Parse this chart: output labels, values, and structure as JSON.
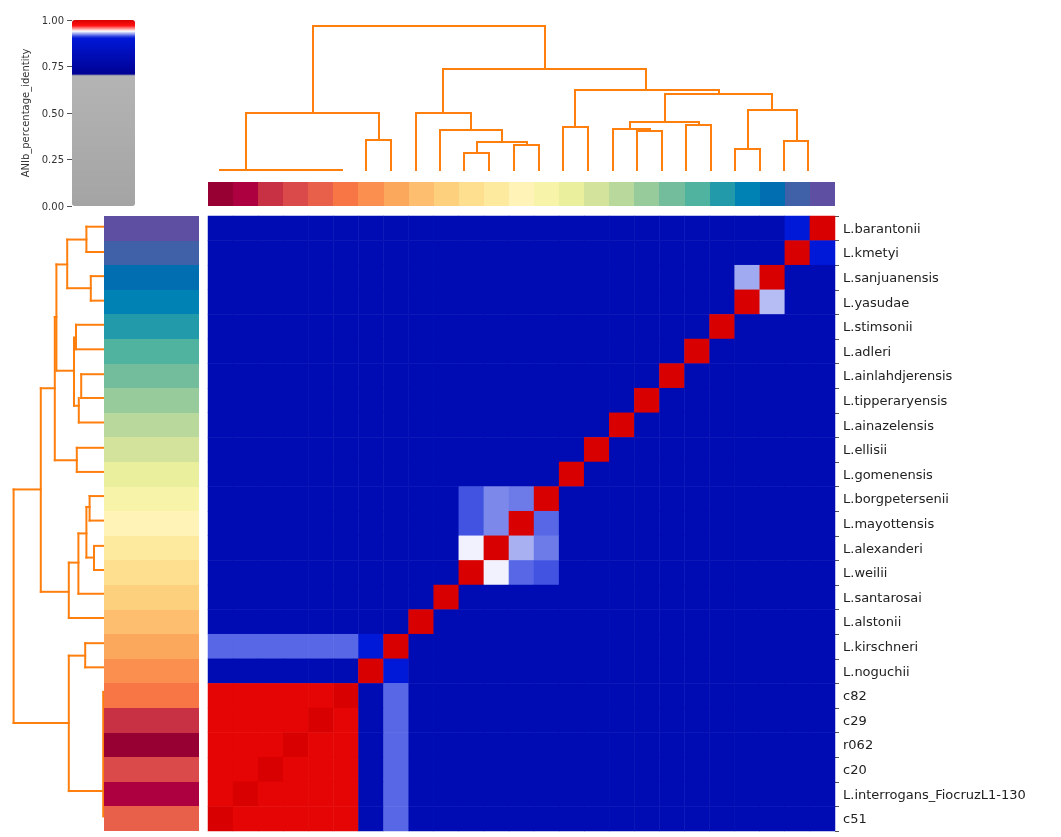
{
  "chart_data": {
    "type": "heatmap",
    "clabel": "ANIb_percentage_identity",
    "tick_labels": "y",
    "categories": [
      null,
      null,
      null,
      null,
      null,
      null,
      null,
      null,
      null,
      null,
      null,
      null,
      null,
      null,
      null,
      null,
      null,
      null,
      null,
      null,
      null,
      null,
      null,
      null,
      null
    ],
    "y_categories": [
      "L.barantonii",
      "L.kmetyi",
      "L.sanjuanensis",
      "L.yasudae",
      "L.stimsonii",
      "L.adleri",
      "L.ainlahdjerensis",
      "L.tipperaryensis",
      "L.ainazelensis",
      "L.ellisii",
      "L.gomenensis",
      "L.borgpetersenii",
      "L.mayottensis",
      "L.alexanderi",
      "L.weilii",
      "L.santarosai",
      "L.alstonii",
      "L.kirschneri",
      "L.noguchii",
      "c82",
      "c29",
      "r062",
      "c20",
      "L.interrogans_FiocruzL1-130",
      "c51"
    ],
    "cells": [
      [
        0.8,
        0.8,
        0.8,
        0.8,
        0.8,
        0.8,
        0.8,
        0.8,
        0.8,
        0.8,
        0.8,
        0.8,
        0.8,
        0.8,
        0.8,
        0.8,
        0.8,
        0.8,
        0.8,
        0.8,
        0.8,
        0.8,
        0.8,
        0.905,
        1
      ],
      [
        0.8,
        0.8,
        0.8,
        0.8,
        0.8,
        0.8,
        0.8,
        0.8,
        0.8,
        0.8,
        0.8,
        0.8,
        0.8,
        0.8,
        0.8,
        0.8,
        0.8,
        0.8,
        0.8,
        0.8,
        0.8,
        0.8,
        0.8,
        1,
        0.905
      ],
      [
        0.8,
        0.8,
        0.8,
        0.8,
        0.8,
        0.8,
        0.8,
        0.8,
        0.8,
        0.8,
        0.8,
        0.8,
        0.8,
        0.8,
        0.8,
        0.8,
        0.8,
        0.8,
        0.8,
        0.8,
        0.8,
        0.927,
        1,
        0.8,
        0.8
      ],
      [
        0.8,
        0.8,
        0.8,
        0.8,
        0.8,
        0.8,
        0.8,
        0.8,
        0.8,
        0.8,
        0.8,
        0.8,
        0.8,
        0.8,
        0.8,
        0.8,
        0.8,
        0.8,
        0.8,
        0.8,
        0.8,
        1,
        0.93,
        0.8,
        0.8
      ],
      [
        0.8,
        0.8,
        0.8,
        0.8,
        0.8,
        0.8,
        0.8,
        0.8,
        0.8,
        0.8,
        0.8,
        0.8,
        0.8,
        0.8,
        0.8,
        0.8,
        0.8,
        0.8,
        0.8,
        0.8,
        1,
        0.8,
        0.8,
        0.8,
        0.8
      ],
      [
        0.8,
        0.8,
        0.8,
        0.8,
        0.8,
        0.8,
        0.8,
        0.8,
        0.8,
        0.8,
        0.8,
        0.8,
        0.8,
        0.8,
        0.8,
        0.8,
        0.8,
        0.8,
        0.8,
        1,
        0.8,
        0.8,
        0.8,
        0.8,
        0.8
      ],
      [
        0.8,
        0.8,
        0.8,
        0.8,
        0.8,
        0.8,
        0.8,
        0.8,
        0.8,
        0.8,
        0.8,
        0.8,
        0.8,
        0.8,
        0.8,
        0.8,
        0.8,
        0.8,
        1,
        0.8,
        0.8,
        0.8,
        0.8,
        0.8,
        0.8
      ],
      [
        0.8,
        0.8,
        0.8,
        0.8,
        0.8,
        0.8,
        0.8,
        0.8,
        0.8,
        0.8,
        0.8,
        0.8,
        0.8,
        0.8,
        0.8,
        0.8,
        0.8,
        1,
        0.8,
        0.8,
        0.8,
        0.8,
        0.8,
        0.8,
        0.8
      ],
      [
        0.8,
        0.8,
        0.8,
        0.8,
        0.8,
        0.8,
        0.8,
        0.8,
        0.8,
        0.8,
        0.8,
        0.8,
        0.8,
        0.8,
        0.8,
        0.8,
        1,
        0.8,
        0.8,
        0.8,
        0.8,
        0.8,
        0.8,
        0.8,
        0.8
      ],
      [
        0.8,
        0.8,
        0.8,
        0.8,
        0.8,
        0.8,
        0.8,
        0.8,
        0.8,
        0.8,
        0.8,
        0.8,
        0.8,
        0.8,
        0.8,
        1,
        0.8,
        0.8,
        0.8,
        0.8,
        0.8,
        0.8,
        0.8,
        0.8,
        0.8
      ],
      [
        0.8,
        0.8,
        0.8,
        0.8,
        0.8,
        0.8,
        0.8,
        0.8,
        0.8,
        0.8,
        0.8,
        0.8,
        0.8,
        0.8,
        1,
        0.8,
        0.8,
        0.8,
        0.8,
        0.8,
        0.8,
        0.8,
        0.8,
        0.8,
        0.8
      ],
      [
        0.8,
        0.8,
        0.8,
        0.8,
        0.8,
        0.8,
        0.8,
        0.8,
        0.8,
        0.8,
        0.914,
        0.922,
        0.92,
        1,
        0.8,
        0.8,
        0.8,
        0.8,
        0.8,
        0.8,
        0.8,
        0.8,
        0.8,
        0.8,
        0.8
      ],
      [
        0.8,
        0.8,
        0.8,
        0.8,
        0.8,
        0.8,
        0.8,
        0.8,
        0.8,
        0.8,
        0.914,
        0.922,
        1,
        0.917,
        0.8,
        0.8,
        0.8,
        0.8,
        0.8,
        0.8,
        0.8,
        0.8,
        0.8,
        0.8,
        0.8
      ],
      [
        0.8,
        0.8,
        0.8,
        0.8,
        0.8,
        0.8,
        0.8,
        0.8,
        0.8,
        0.8,
        0.938,
        1,
        0.928,
        0.92,
        0.8,
        0.8,
        0.8,
        0.8,
        0.8,
        0.8,
        0.8,
        0.8,
        0.8,
        0.8,
        0.8
      ],
      [
        0.8,
        0.8,
        0.8,
        0.8,
        0.8,
        0.8,
        0.8,
        0.8,
        0.8,
        0.8,
        1,
        0.938,
        0.917,
        0.914,
        0.8,
        0.8,
        0.8,
        0.8,
        0.8,
        0.8,
        0.8,
        0.8,
        0.8,
        0.8,
        0.8
      ],
      [
        0.8,
        0.8,
        0.8,
        0.8,
        0.8,
        0.8,
        0.8,
        0.8,
        0.8,
        1,
        0.8,
        0.8,
        0.8,
        0.8,
        0.8,
        0.8,
        0.8,
        0.8,
        0.8,
        0.8,
        0.8,
        0.8,
        0.8,
        0.8,
        0.8
      ],
      [
        0.8,
        0.8,
        0.8,
        0.8,
        0.8,
        0.8,
        0.8,
        0.8,
        1,
        0.8,
        0.8,
        0.8,
        0.8,
        0.8,
        0.8,
        0.8,
        0.8,
        0.8,
        0.8,
        0.8,
        0.8,
        0.8,
        0.8,
        0.8,
        0.8
      ],
      [
        0.917,
        0.917,
        0.917,
        0.917,
        0.917,
        0.917,
        0.905,
        1,
        0.8,
        0.8,
        0.8,
        0.8,
        0.8,
        0.8,
        0.8,
        0.8,
        0.8,
        0.8,
        0.8,
        0.8,
        0.8,
        0.8,
        0.8,
        0.8,
        0.8
      ],
      [
        0.8,
        0.8,
        0.8,
        0.8,
        0.8,
        0.8,
        1,
        0.905,
        0.8,
        0.8,
        0.8,
        0.8,
        0.8,
        0.8,
        0.8,
        0.8,
        0.8,
        0.8,
        0.8,
        0.8,
        0.8,
        0.8,
        0.8,
        0.8,
        0.8
      ],
      [
        0.99,
        0.99,
        0.99,
        0.99,
        0.99,
        1,
        0.8,
        0.917,
        0.8,
        0.8,
        0.8,
        0.8,
        0.8,
        0.8,
        0.8,
        0.8,
        0.8,
        0.8,
        0.8,
        0.8,
        0.8,
        0.8,
        0.8,
        0.8,
        0.8
      ],
      [
        0.99,
        0.99,
        0.99,
        0.99,
        1,
        0.99,
        0.8,
        0.917,
        0.8,
        0.8,
        0.8,
        0.8,
        0.8,
        0.8,
        0.8,
        0.8,
        0.8,
        0.8,
        0.8,
        0.8,
        0.8,
        0.8,
        0.8,
        0.8,
        0.8
      ],
      [
        0.99,
        0.99,
        0.99,
        1,
        0.99,
        0.99,
        0.8,
        0.917,
        0.8,
        0.8,
        0.8,
        0.8,
        0.8,
        0.8,
        0.8,
        0.8,
        0.8,
        0.8,
        0.8,
        0.8,
        0.8,
        0.8,
        0.8,
        0.8,
        0.8
      ],
      [
        0.99,
        0.99,
        1,
        0.99,
        0.99,
        0.99,
        0.8,
        0.917,
        0.8,
        0.8,
        0.8,
        0.8,
        0.8,
        0.8,
        0.8,
        0.8,
        0.8,
        0.8,
        0.8,
        0.8,
        0.8,
        0.8,
        0.8,
        0.8,
        0.8
      ],
      [
        0.99,
        1,
        0.99,
        0.99,
        0.99,
        0.99,
        0.8,
        0.917,
        0.8,
        0.8,
        0.8,
        0.8,
        0.8,
        0.8,
        0.8,
        0.8,
        0.8,
        0.8,
        0.8,
        0.8,
        0.8,
        0.8,
        0.8,
        0.8,
        0.8
      ],
      [
        1,
        0.99,
        0.99,
        0.99,
        0.99,
        0.99,
        0.8,
        0.917,
        0.8,
        0.8,
        0.8,
        0.8,
        0.8,
        0.8,
        0.8,
        0.8,
        0.8,
        0.8,
        0.8,
        0.8,
        0.8,
        0.8,
        0.8,
        0.8,
        0.8
      ]
    ],
    "clim": [
      0,
      1
    ],
    "cticks": [
      {
        "value": 0,
        "label": "0.00"
      },
      {
        "value": 0.25,
        "label": "0.25"
      },
      {
        "value": 0.5,
        "label": "0.50"
      },
      {
        "value": 0.75,
        "label": "0.75"
      },
      {
        "value": 1,
        "label": "1.00"
      }
    ]
  }
}
